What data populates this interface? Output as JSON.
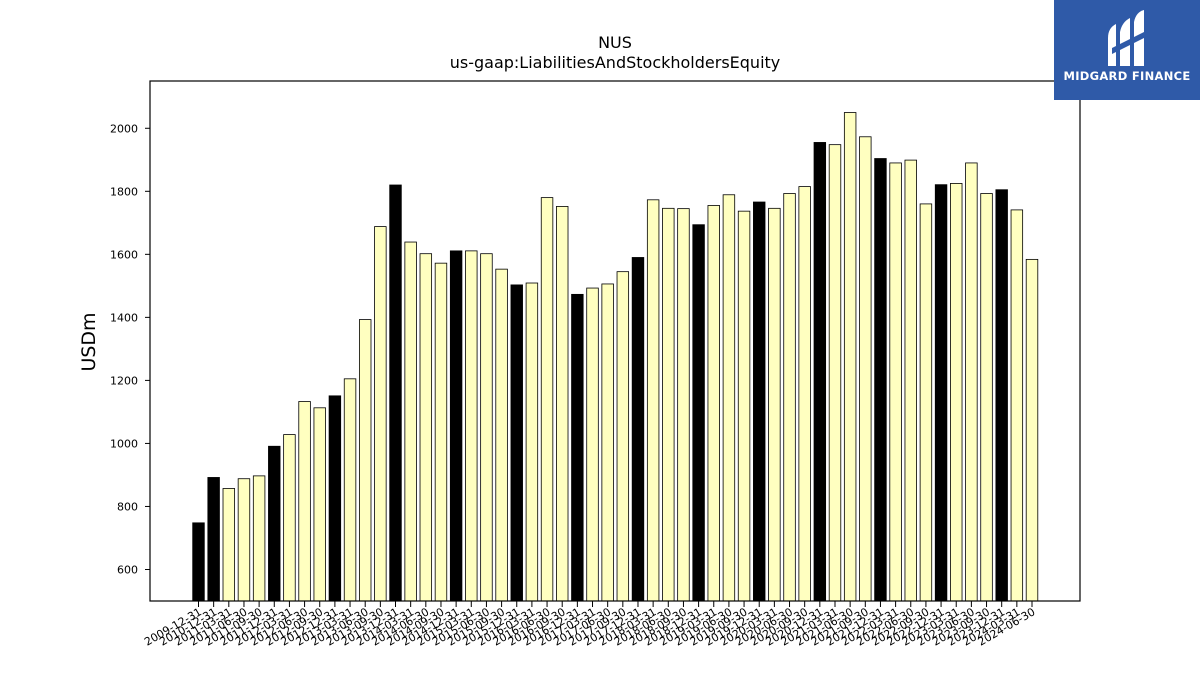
{
  "logo": {
    "text": "MIDGARD FINANCE",
    "icon": "midgard-finance-logo"
  },
  "chart_data": {
    "type": "bar",
    "title": "NUS",
    "subtitle": "us-gaap:LiabilitiesAndStockholdersEquity",
    "ylabel": "USDm",
    "xlabel": "",
    "ylim": [
      500,
      2150
    ],
    "yticks": [
      600,
      800,
      1000,
      1200,
      1400,
      1600,
      1800,
      2000
    ],
    "colors": {
      "q4": "#000000",
      "other": "#ffffc0",
      "edge": "#000000"
    },
    "categories": [
      "2009-12-31",
      "2010-12-31",
      "2011-03-31",
      "2011-06-30",
      "2011-09-30",
      "2011-12-31",
      "2012-03-31",
      "2012-06-30",
      "2012-09-30",
      "2012-12-31",
      "2013-03-31",
      "2013-06-30",
      "2013-09-30",
      "2013-12-31",
      "2014-03-31",
      "2014-06-30",
      "2014-09-30",
      "2014-12-31",
      "2015-03-31",
      "2015-06-30",
      "2015-09-30",
      "2015-12-31",
      "2016-03-31",
      "2016-06-30",
      "2016-09-30",
      "2016-12-31",
      "2017-03-31",
      "2017-06-30",
      "2017-09-30",
      "2017-12-31",
      "2018-03-31",
      "2018-06-30",
      "2018-09-30",
      "2018-12-31",
      "2019-03-31",
      "2019-06-30",
      "2019-09-30",
      "2019-12-31",
      "2020-03-31",
      "2020-06-30",
      "2020-09-30",
      "2020-12-31",
      "2021-03-31",
      "2021-06-30",
      "2021-09-30",
      "2021-12-31",
      "2022-03-31",
      "2022-06-30",
      "2022-09-30",
      "2022-12-31",
      "2023-03-31",
      "2023-06-30",
      "2023-09-30",
      "2023-12-31",
      "2024-03-31",
      "2024-06-30"
    ],
    "values": [
      748,
      892,
      857,
      888,
      897,
      991,
      1028,
      1133,
      1113,
      1151,
      1205,
      1393,
      1688,
      1820,
      1639,
      1602,
      1572,
      1611,
      1611,
      1602,
      1553,
      1503,
      1509,
      1780,
      1752,
      1473,
      1493,
      1506,
      1545,
      1590,
      1773,
      1746,
      1745,
      1694,
      1755,
      1789,
      1737,
      1766,
      1746,
      1793,
      1815,
      1955,
      1948,
      2050,
      1973,
      1904,
      1890,
      1899,
      1760,
      1821,
      1825,
      1890,
      1793,
      1805,
      1741,
      1584
    ],
    "highlight": [
      true,
      true,
      false,
      false,
      false,
      true,
      false,
      false,
      false,
      true,
      false,
      false,
      false,
      true,
      false,
      false,
      false,
      true,
      false,
      false,
      false,
      true,
      false,
      false,
      false,
      true,
      false,
      false,
      false,
      true,
      false,
      false,
      false,
      true,
      false,
      false,
      false,
      true,
      false,
      false,
      false,
      true,
      false,
      false,
      false,
      true,
      false,
      false,
      false,
      true,
      false,
      false,
      false,
      true,
      false,
      false
    ]
  }
}
